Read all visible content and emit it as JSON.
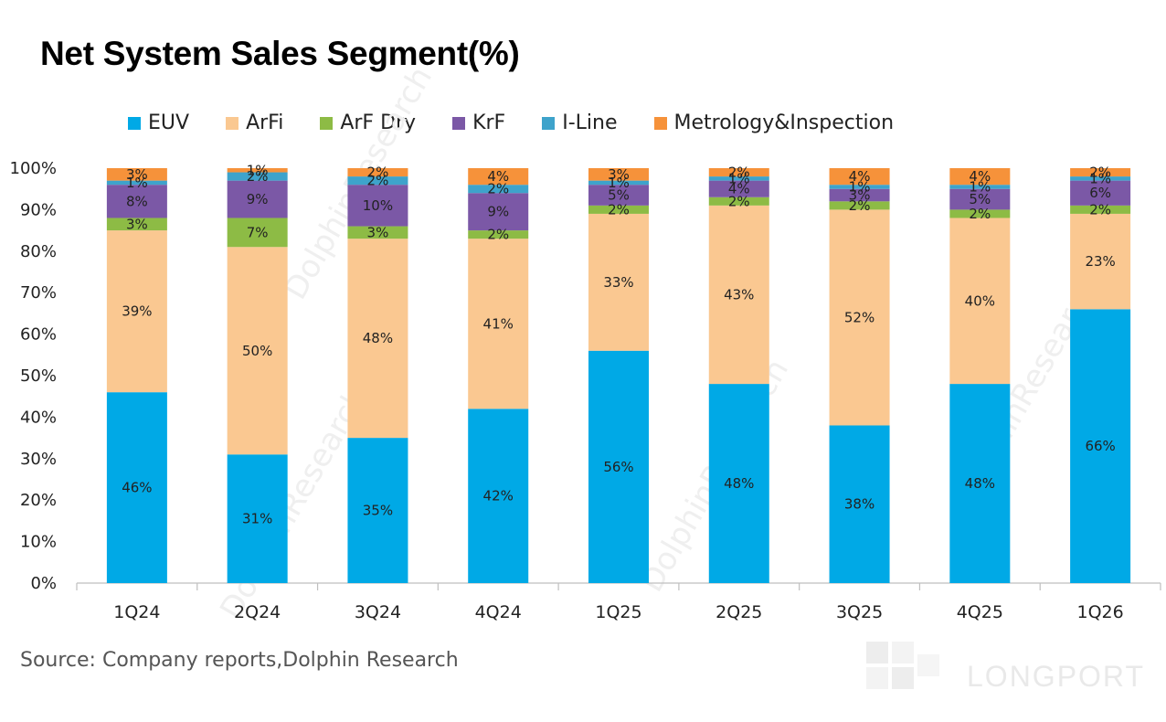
{
  "chart_data": {
    "type": "bar",
    "stacked": true,
    "title": "Net System Sales Segment(%)",
    "xlabel": "",
    "ylabel": "",
    "ylim": [
      0,
      100
    ],
    "yticks": [
      "0%",
      "10%",
      "20%",
      "30%",
      "40%",
      "50%",
      "60%",
      "70%",
      "80%",
      "90%",
      "100%"
    ],
    "legend_position": "top",
    "categories": [
      "1Q24",
      "2Q24",
      "3Q24",
      "4Q24",
      "1Q25",
      "2Q25",
      "3Q25",
      "4Q25",
      "1Q26"
    ],
    "series": [
      {
        "name": "EUV",
        "color": "#00a9e6",
        "values": [
          46,
          31,
          35,
          42,
          56,
          48,
          38,
          48,
          66
        ]
      },
      {
        "name": "ArFi",
        "color": "#fac891",
        "values": [
          39,
          50,
          48,
          41,
          33,
          43,
          52,
          40,
          23
        ]
      },
      {
        "name": "ArF Dry",
        "color": "#8dbb45",
        "values": [
          3,
          7,
          3,
          2,
          2,
          2,
          2,
          2,
          2
        ]
      },
      {
        "name": "KrF",
        "color": "#7b58a6",
        "values": [
          8,
          9,
          10,
          9,
          5,
          4,
          3,
          5,
          6
        ]
      },
      {
        "name": "I-Line",
        "color": "#3ea3cb",
        "values": [
          1,
          2,
          2,
          2,
          1,
          1,
          1,
          1,
          1
        ]
      },
      {
        "name": "Metrology&Inspection",
        "color": "#f6923a",
        "values": [
          3,
          1,
          2,
          4,
          3,
          2,
          4,
          4,
          2
        ]
      }
    ]
  },
  "source": "Source: Company reports,Dolphin Research",
  "watermark": {
    "diagonal_text": "DolphinResearch",
    "brand_text": "LONGPORT"
  }
}
